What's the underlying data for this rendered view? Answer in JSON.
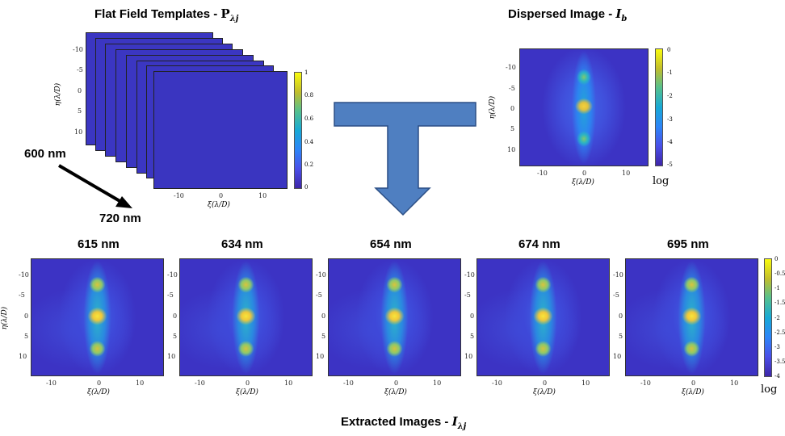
{
  "top_left": {
    "title": "Flat Field Templates - ",
    "title_symbol": "P",
    "title_sub": "λj",
    "wl_start": "600 nm",
    "wl_end": "720 nm",
    "yticks": [
      "-10",
      "-5",
      "0",
      "5",
      "10"
    ],
    "xticks": [
      "-10",
      "0",
      "10"
    ],
    "ylabel": "η(λ/D)",
    "xlabel": "ξ(λ/D)",
    "colorbar_ticks": [
      "1",
      "0.8",
      "0.6",
      "0.4",
      "0.2",
      "0"
    ]
  },
  "top_right": {
    "title": "Dispersed Image - ",
    "title_symbol": "I",
    "title_sub": "b",
    "yticks": [
      "-10",
      "-5",
      "0",
      "5",
      "10"
    ],
    "xticks": [
      "-10",
      "0",
      "10"
    ],
    "ylabel": "η(λ/D)",
    "xlabel": "ξ(λ/D)",
    "colorbar_ticks": [
      "0",
      "-1",
      "-2",
      "-3",
      "-4",
      "-5"
    ],
    "scale_label": "log"
  },
  "bottom": {
    "panels": [
      {
        "label": "615 nm"
      },
      {
        "label": "634 nm"
      },
      {
        "label": "654 nm"
      },
      {
        "label": "674 nm"
      },
      {
        "label": "695 nm"
      }
    ],
    "yticks": [
      "-10",
      "-5",
      "0",
      "5",
      "10"
    ],
    "xticks": [
      "-10",
      "0",
      "10"
    ],
    "ylabel": "η(λ/D)",
    "xlabel": "ξ(λ/D)",
    "colorbar_ticks": [
      "0",
      "-0.5",
      "-1",
      "-1.5",
      "-2",
      "-2.5",
      "-3",
      "-3.5",
      "-4"
    ],
    "scale_label": "log",
    "caption": "Extracted Images - ",
    "caption_symbol": "I",
    "caption_sub": "λj"
  },
  "colors": {
    "arrow_fill": "#4f7fc1",
    "arrow_stroke": "#2c4f85",
    "map_background": "#3c33c4"
  }
}
